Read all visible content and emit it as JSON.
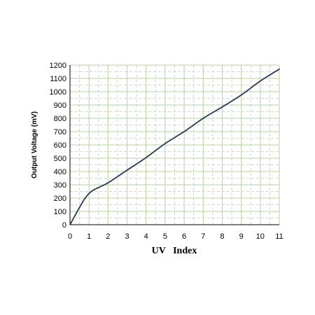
{
  "chart_data": {
    "type": "line",
    "title": "",
    "xlabel": "UV   Index",
    "ylabel": "Output Voltage (mV)",
    "xlim": [
      0,
      11
    ],
    "ylim": [
      0,
      1200
    ],
    "x_ticks": [
      0,
      1,
      2,
      3,
      4,
      5,
      6,
      7,
      8,
      9,
      10,
      11
    ],
    "y_ticks": [
      0,
      100,
      200,
      300,
      400,
      500,
      600,
      700,
      800,
      900,
      1000,
      1100,
      1200
    ],
    "grid": "on",
    "series": [
      {
        "x": [
          0,
          0.25,
          0.5,
          0.75,
          1.0,
          1.25,
          1.5,
          2,
          3,
          4,
          5,
          6,
          7,
          8,
          9,
          10,
          11
        ],
        "values": [
          0,
          65,
          130,
          190,
          235,
          262,
          280,
          315,
          410,
          505,
          610,
          700,
          800,
          885,
          975,
          1080,
          1170
        ]
      }
    ],
    "colors": {
      "line": "#2b3a55",
      "grid_major": "#b5d39b",
      "grid_minor": "#c9c9c9",
      "axis": "#000000"
    }
  }
}
